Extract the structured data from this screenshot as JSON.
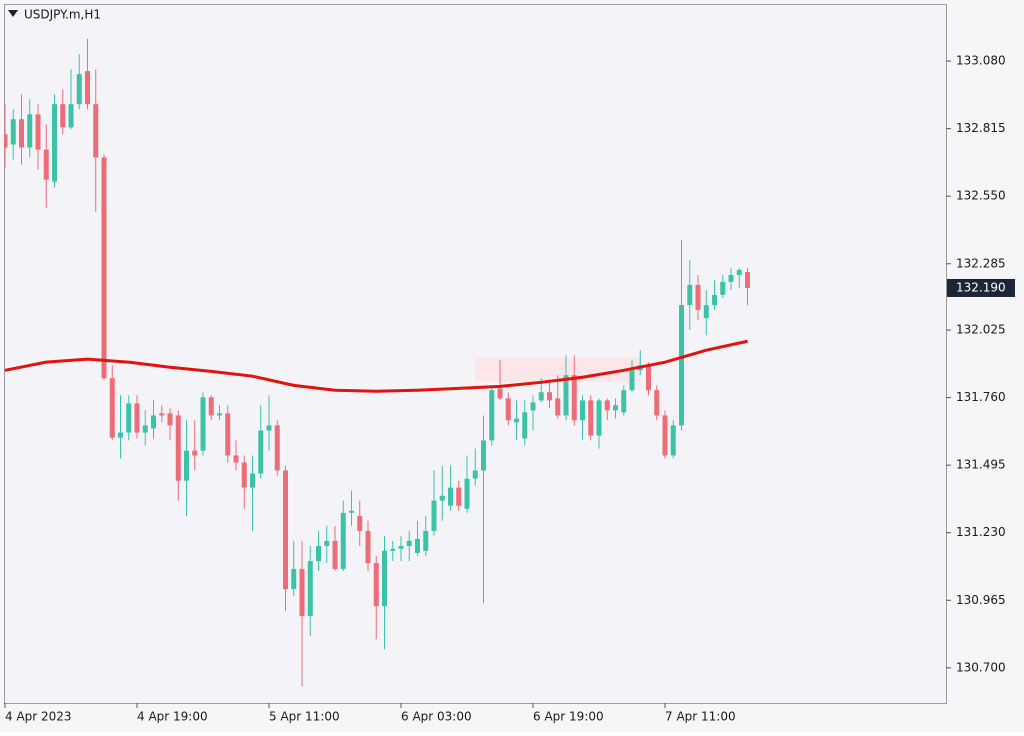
{
  "chart_data": {
    "type": "candlestick",
    "title": "USDJPY.m,H1",
    "categories": [
      "4 Apr 2023",
      null,
      null,
      null,
      null,
      null,
      null,
      null,
      null,
      null,
      null,
      null,
      null,
      null,
      null,
      null,
      "4 Apr 19:00",
      null,
      null,
      null,
      null,
      null,
      null,
      null,
      null,
      null,
      null,
      null,
      null,
      null,
      null,
      null,
      "5 Apr 11:00",
      null,
      null,
      null,
      null,
      null,
      null,
      null,
      null,
      null,
      null,
      null,
      null,
      null,
      null,
      null,
      "6 Apr 03:00",
      null,
      null,
      null,
      null,
      null,
      null,
      null,
      null,
      null,
      null,
      null,
      null,
      null,
      null,
      null,
      "6 Apr 19:00",
      null,
      null,
      null,
      null,
      null,
      null,
      null,
      null,
      null,
      null,
      null,
      null,
      null,
      null,
      null,
      "7 Apr 11:00",
      null,
      null,
      null,
      null,
      null,
      null,
      null,
      null,
      null,
      null
    ],
    "open": [
      132.793,
      132.753,
      132.852,
      132.741,
      132.871,
      132.733,
      132.607,
      132.911,
      132.82,
      132.911,
      133.041,
      132.911,
      132.702,
      131.836,
      131.603,
      131.623,
      131.737,
      131.623,
      131.639,
      131.698,
      131.698,
      131.69,
      131.434,
      131.552,
      131.552,
      131.761,
      131.69,
      131.698,
      131.533,
      131.505,
      131.407,
      131.462,
      131.631,
      131.651,
      131.474,
      131.009,
      131.088,
      130.903,
      131.119,
      131.178,
      131.198,
      131.088,
      131.308,
      131.296,
      131.237,
      131.111,
      130.942,
      131.159,
      131.167,
      131.178,
      131.151,
      131.159,
      131.237,
      131.356,
      131.336,
      131.407,
      131.324,
      131.442,
      131.474,
      131.592,
      131.796,
      131.757,
      131.663,
      131.6,
      131.71,
      131.749,
      131.781,
      131.757,
      131.69,
      131.848,
      131.671,
      131.749,
      131.611,
      131.749,
      131.71,
      131.702,
      131.789,
      131.867,
      131.887,
      131.789,
      131.69,
      131.533,
      131.651,
      132.123,
      132.202,
      132.072,
      132.123,
      132.163,
      132.214,
      132.241,
      132.253
    ],
    "high": [
      132.911,
      132.891,
      132.95,
      132.93,
      132.911,
      132.832,
      132.95,
      132.97,
      133.048,
      133.107,
      133.167,
      133.048,
      132.714,
      131.887,
      131.769,
      131.769,
      131.769,
      131.71,
      131.749,
      131.73,
      131.718,
      131.71,
      131.671,
      131.671,
      131.781,
      131.769,
      131.73,
      131.73,
      131.592,
      131.533,
      131.533,
      131.73,
      131.769,
      131.671,
      131.493,
      131.198,
      131.198,
      131.178,
      131.237,
      131.257,
      131.257,
      131.356,
      131.395,
      131.356,
      131.277,
      131.139,
      131.218,
      131.198,
      131.218,
      131.237,
      131.277,
      131.296,
      131.474,
      131.493,
      131.493,
      131.434,
      131.533,
      131.56,
      131.69,
      131.808,
      131.907,
      131.781,
      131.749,
      131.749,
      131.769,
      131.836,
      131.828,
      131.848,
      131.926,
      131.926,
      131.769,
      131.769,
      131.757,
      131.757,
      131.757,
      131.808,
      131.907,
      131.946,
      131.899,
      131.808,
      131.71,
      131.671,
      132.379,
      132.3,
      132.241,
      132.182,
      132.222,
      132.241,
      132.269,
      132.269,
      132.269
    ],
    "low": [
      132.663,
      132.694,
      132.674,
      132.702,
      132.655,
      132.505,
      132.584,
      132.793,
      132.812,
      132.891,
      132.891,
      132.489,
      131.828,
      131.592,
      131.521,
      131.592,
      131.6,
      131.572,
      131.6,
      131.663,
      131.592,
      131.356,
      131.296,
      131.474,
      131.533,
      131.671,
      131.671,
      131.505,
      131.474,
      131.324,
      131.237,
      131.442,
      131.552,
      131.454,
      130.922,
      130.981,
      130.627,
      130.824,
      131.08,
      131.111,
      131.08,
      131.08,
      131.257,
      131.178,
      131.08,
      130.812,
      130.773,
      131.119,
      131.119,
      131.119,
      131.139,
      131.139,
      131.218,
      131.277,
      131.316,
      131.316,
      131.308,
      131.415,
      130.954,
      131.572,
      131.749,
      131.651,
      131.592,
      131.572,
      131.631,
      131.741,
      131.718,
      131.678,
      131.671,
      131.651,
      131.592,
      131.592,
      131.56,
      131.671,
      131.678,
      131.69,
      131.781,
      131.848,
      131.769,
      131.671,
      131.521,
      131.521,
      131.631,
      132.025,
      132.064,
      132.005,
      132.104,
      132.151,
      132.182,
      132.19,
      132.123
    ],
    "close": [
      132.741,
      132.852,
      132.741,
      132.871,
      132.733,
      132.615,
      132.911,
      132.82,
      132.911,
      133.029,
      132.911,
      132.702,
      131.836,
      131.603,
      131.623,
      131.737,
      131.623,
      131.651,
      131.69,
      131.69,
      131.651,
      131.434,
      131.552,
      131.533,
      131.761,
      131.69,
      131.698,
      131.533,
      131.505,
      131.407,
      131.462,
      131.631,
      131.651,
      131.474,
      131.009,
      131.088,
      130.903,
      131.119,
      131.178,
      131.198,
      131.088,
      131.308,
      131.316,
      131.237,
      131.111,
      130.942,
      131.159,
      131.167,
      131.178,
      131.198,
      131.206,
      131.237,
      131.356,
      131.375,
      131.407,
      131.336,
      131.442,
      131.474,
      131.592,
      131.789,
      131.757,
      131.671,
      131.678,
      131.702,
      131.741,
      131.781,
      131.749,
      131.69,
      131.848,
      131.671,
      131.749,
      131.611,
      131.749,
      131.71,
      131.73,
      131.789,
      131.867,
      131.887,
      131.789,
      131.69,
      131.533,
      131.651,
      132.123,
      132.202,
      132.104,
      132.123,
      132.163,
      132.214,
      132.241,
      132.261,
      132.19
    ],
    "up_color": "#3cc3a6",
    "down_color": "#ee6c78",
    "ma": {
      "color": "#e3120b",
      "x": [
        0,
        5,
        10,
        15,
        20,
        25,
        30,
        35,
        40,
        45,
        50,
        55,
        60,
        65,
        70,
        75,
        80,
        85,
        90
      ],
      "values": [
        131.867,
        131.899,
        131.911,
        131.899,
        131.879,
        131.863,
        131.844,
        131.808,
        131.789,
        131.785,
        131.789,
        131.796,
        131.804,
        131.82,
        131.84,
        131.867,
        131.899,
        131.946,
        131.981
      ]
    },
    "ylim": [
      130.562,
      133.304
    ],
    "yticks": [
      {
        "value": 133.08,
        "label": "133.080"
      },
      132.815,
      {
        "value": 132.55,
        "label": "132.550"
      },
      132.285,
      132.025,
      {
        "value": 131.76,
        "label": "131.760"
      },
      131.495,
      {
        "value": 131.23,
        "label": "131.230"
      },
      130.965,
      {
        "value": 130.7,
        "label": "130.700"
      }
    ],
    "last_price": {
      "value": 132.19,
      "label": "132.190"
    },
    "grid": false
  }
}
